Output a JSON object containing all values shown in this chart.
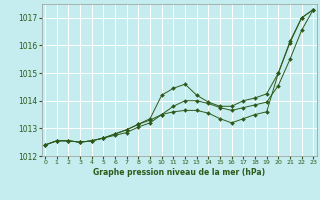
{
  "title": "Graphe pression niveau de la mer (hPa)",
  "bg_color": "#c5ecee",
  "grid_color": "#ffffff",
  "line_color": "#2d5a1b",
  "xlim": [
    -0.3,
    23.3
  ],
  "ylim": [
    1012.0,
    1017.5
  ],
  "yticks": [
    1012,
    1013,
    1014,
    1015,
    1016,
    1017
  ],
  "xticks": [
    0,
    1,
    2,
    3,
    4,
    5,
    6,
    7,
    8,
    9,
    10,
    11,
    12,
    13,
    14,
    15,
    16,
    17,
    18,
    19,
    20,
    21,
    22,
    23
  ],
  "series1_x": [
    0,
    1,
    2,
    3,
    4,
    5,
    6,
    7,
    8,
    9,
    10,
    11,
    12,
    13,
    14,
    15,
    16,
    17,
    18,
    19,
    20,
    21,
    22,
    23
  ],
  "series1_y": [
    1012.4,
    1012.55,
    1012.55,
    1012.5,
    1012.55,
    1012.65,
    1012.75,
    1012.85,
    1013.05,
    1013.2,
    1013.5,
    1013.8,
    1014.0,
    1014.0,
    1013.9,
    1013.75,
    1013.65,
    1013.75,
    1013.85,
    1013.95,
    1014.55,
    1015.5,
    1016.55,
    1017.3
  ],
  "series2_x": [
    0,
    1,
    2,
    3,
    4,
    5,
    6,
    7,
    8,
    9,
    10,
    11,
    12,
    13,
    14,
    15,
    16,
    17,
    18,
    19,
    20,
    21,
    22,
    23
  ],
  "series2_y": [
    1012.4,
    1012.55,
    1012.55,
    1012.5,
    1012.55,
    1012.65,
    1012.8,
    1012.95,
    1013.15,
    1013.35,
    1014.2,
    1014.45,
    1014.6,
    1014.2,
    1013.95,
    1013.8,
    1013.8,
    1014.0,
    1014.1,
    1014.25,
    1015.0,
    1016.1,
    1017.0,
    1017.3
  ],
  "series3_x": [
    0,
    1,
    2,
    3,
    4,
    5,
    6,
    7,
    8,
    9,
    10,
    11,
    12,
    13,
    14,
    15,
    16,
    17,
    18,
    19,
    20,
    21,
    22,
    23
  ],
  "series3_y": [
    1012.4,
    1012.55,
    1012.55,
    1012.5,
    1012.55,
    1012.65,
    1012.8,
    1012.95,
    1013.15,
    1013.3,
    1013.5,
    1013.6,
    1013.65,
    1013.65,
    1013.55,
    1013.35,
    1013.2,
    1013.35,
    1013.5,
    1013.6,
    1015.0,
    1016.15,
    1017.0,
    1017.3
  ]
}
